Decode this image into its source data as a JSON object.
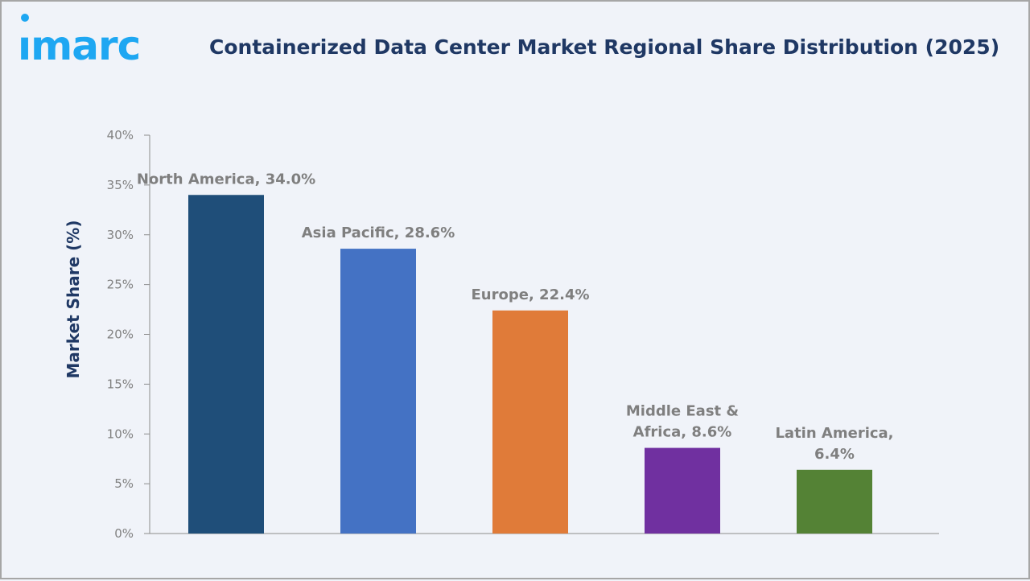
{
  "logo_text": "imarc",
  "colors": {
    "accent": "#1ea7f2",
    "title": "#1f3864"
  },
  "chart_data": {
    "type": "bar",
    "title": "Containerized Data Center Market Regional Share Distribution (2025)",
    "xlabel": "",
    "ylabel": "Market Share (%)",
    "ylim": [
      0,
      40
    ],
    "yticks": [
      0,
      5,
      10,
      15,
      20,
      25,
      30,
      35,
      40
    ],
    "ytick_labels": [
      "0%",
      "5%",
      "10%",
      "15%",
      "20%",
      "25%",
      "30%",
      "35%",
      "40%"
    ],
    "categories": [
      "North America",
      "Asia Pacific",
      "Europe",
      "Middle East & Africa",
      "Latin America"
    ],
    "values": [
      34.0,
      28.6,
      22.4,
      8.6,
      6.4
    ],
    "data_labels": [
      [
        "North America, 34.0%"
      ],
      [
        "Asia Pacific, 28.6%"
      ],
      [
        "Europe, 22.4%"
      ],
      [
        "Middle East &",
        "Africa, 8.6%"
      ],
      [
        "Latin America,",
        "6.4%"
      ]
    ],
    "bar_colors": [
      "#1f4e79",
      "#4472c4",
      "#e07b39",
      "#7030a0",
      "#548235"
    ],
    "grid": false,
    "legend": "none"
  }
}
